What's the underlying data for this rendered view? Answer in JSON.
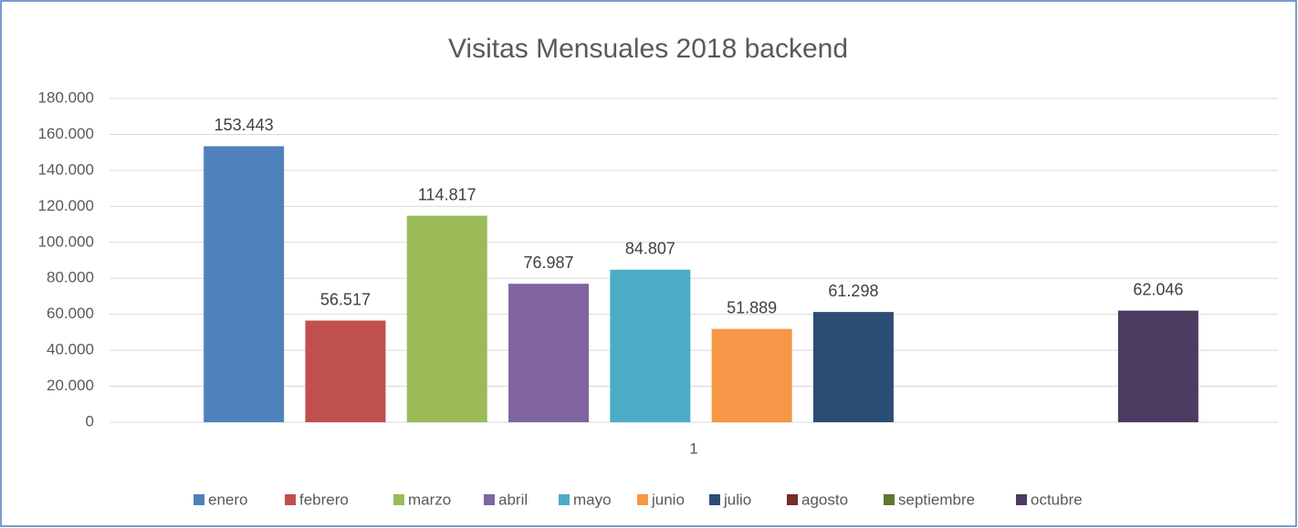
{
  "chart_data": {
    "type": "bar",
    "title": "Visitas Mensuales 2018 backend",
    "categories": [
      "1"
    ],
    "series": [
      {
        "name": "enero",
        "color": "#4f81bd",
        "values": [
          153443
        ],
        "value_labels": [
          "153.443"
        ]
      },
      {
        "name": "febrero",
        "color": "#c0504d",
        "values": [
          56517
        ],
        "value_labels": [
          "56.517"
        ]
      },
      {
        "name": "marzo",
        "color": "#9bbb59",
        "values": [
          114817
        ],
        "value_labels": [
          "114.817"
        ]
      },
      {
        "name": "abril",
        "color": "#8064a2",
        "values": [
          76987
        ],
        "value_labels": [
          "76.987"
        ]
      },
      {
        "name": "mayo",
        "color": "#4bacc6",
        "values": [
          84807
        ],
        "value_labels": [
          "84.807"
        ]
      },
      {
        "name": "junio",
        "color": "#f79646",
        "values": [
          51889
        ],
        "value_labels": [
          "51.889"
        ]
      },
      {
        "name": "julio",
        "color": "#2c4d75",
        "values": [
          61298
        ],
        "value_labels": [
          "61.298"
        ]
      },
      {
        "name": "agosto",
        "color": "#772c2a",
        "values": [
          null
        ],
        "value_labels": [
          null
        ]
      },
      {
        "name": "septiembre",
        "color": "#5f7530",
        "values": [
          null
        ],
        "value_labels": [
          null
        ]
      },
      {
        "name": "octubre",
        "color": "#4d3b62",
        "values": [
          62046
        ],
        "value_labels": [
          "62.046"
        ]
      }
    ],
    "ylim": [
      0,
      180000
    ],
    "yticks": [
      0,
      {
        "value": 20000,
        "label": "20.000"
      },
      {
        "value": 40000,
        "label": "40.000"
      },
      {
        "value": 60000,
        "label": "60.000"
      },
      {
        "value": 80000,
        "label": "80.000"
      },
      {
        "value": 100000,
        "label": "100.000"
      },
      {
        "value": 120000,
        "label": "120.000"
      },
      {
        "value": 140000,
        "label": "140.000"
      },
      {
        "value": 160000,
        "label": "160.000"
      },
      {
        "value": 180000,
        "label": "180.000"
      }
    ],
    "grid": true,
    "legend": "bottom"
  }
}
